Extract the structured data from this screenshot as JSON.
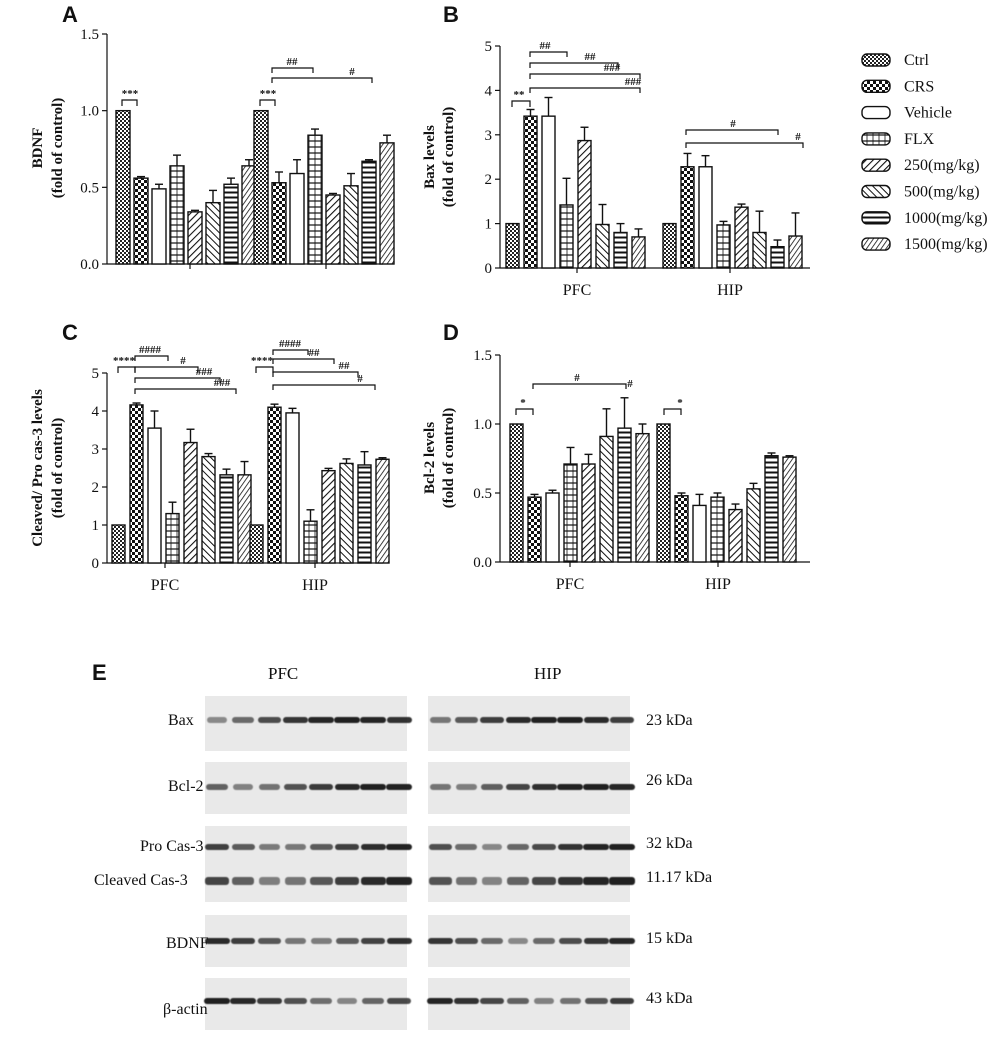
{
  "legend": {
    "items": [
      {
        "label": "Ctrl",
        "pattern": "p0"
      },
      {
        "label": "CRS",
        "pattern": "p1"
      },
      {
        "label": "Vehicle",
        "pattern": "p2"
      },
      {
        "label": "FLX",
        "pattern": "p3"
      },
      {
        "label": "250(mg/kg)",
        "pattern": "p4"
      },
      {
        "label": "500(mg/kg)",
        "pattern": "p5"
      },
      {
        "label": "1000(mg/kg)",
        "pattern": "p6"
      },
      {
        "label": "1500(mg/kg)",
        "pattern": "p7"
      }
    ]
  },
  "chart_data": [
    {
      "panel": "A",
      "type": "bar",
      "ylabel": "BDNF (fold of control)",
      "ylim": [
        0,
        1.5
      ],
      "yticks": [
        "0.0",
        "0.5",
        "1.0",
        "1.5"
      ],
      "groups": [
        "",
        ""
      ],
      "series_names": [
        "Ctrl",
        "CRS",
        "Vehicle",
        "FLX",
        "250(mg/kg)",
        "500(mg/kg)",
        "1000(mg/kg)",
        "1500(mg/kg)"
      ],
      "values": [
        [
          1.0,
          0.56,
          0.49,
          0.64,
          0.34,
          0.4,
          0.52,
          0.64
        ],
        [
          1.0,
          0.53,
          0.59,
          0.84,
          0.45,
          0.51,
          0.67,
          0.79
        ]
      ],
      "errors": [
        [
          0,
          0.01,
          0.03,
          0.07,
          0.01,
          0.08,
          0.04,
          0.04
        ],
        [
          0,
          0.07,
          0.09,
          0.04,
          0.01,
          0.08,
          0.01,
          0.05
        ]
      ],
      "annotations": [
        "***",
        "##",
        "#",
        "***"
      ]
    },
    {
      "panel": "B",
      "type": "bar",
      "ylabel": "Bax levels (fold of control)",
      "ylim": [
        0,
        5
      ],
      "yticks": [
        "0",
        "1",
        "2",
        "3",
        "4",
        "5"
      ],
      "groups": [
        "PFC",
        "HIP"
      ],
      "series_names": [
        "Ctrl",
        "CRS",
        "Vehicle",
        "FLX",
        "250(mg/kg)",
        "500(mg/kg)",
        "1000(mg/kg)",
        "1500(mg/kg)"
      ],
      "values": [
        [
          1.0,
          3.42,
          3.42,
          1.42,
          2.87,
          0.98,
          0.8,
          0.7
        ],
        [
          1.0,
          2.28,
          2.28,
          0.97,
          1.37,
          0.8,
          0.48,
          0.72
        ]
      ],
      "errors": [
        [
          0,
          0.15,
          0.42,
          0.6,
          0.3,
          0.45,
          0.2,
          0.18
        ],
        [
          0,
          0.3,
          0.25,
          0.08,
          0.07,
          0.48,
          0.15,
          0.52
        ]
      ],
      "annotations": [
        "**",
        "##",
        "##",
        "###",
        "###",
        "#",
        "#"
      ]
    },
    {
      "panel": "C",
      "type": "bar",
      "ylabel": "Cleaved/ Pro cas-3 levels (fold of control)",
      "ylim": [
        0,
        5
      ],
      "yticks": [
        "0",
        "1",
        "2",
        "3",
        "4",
        "5"
      ],
      "groups": [
        "PFC",
        "HIP"
      ],
      "series_names": [
        "Ctrl",
        "CRS",
        "Vehicle",
        "FLX",
        "250(mg/kg)",
        "500(mg/kg)",
        "1000(mg/kg)",
        "1500(mg/kg)"
      ],
      "values": [
        [
          1.0,
          4.16,
          3.55,
          1.3,
          3.17,
          2.8,
          2.32,
          2.32
        ],
        [
          1.0,
          4.1,
          3.95,
          1.1,
          2.43,
          2.62,
          2.58,
          2.73
        ]
      ],
      "errors": [
        [
          0,
          0.05,
          0.45,
          0.3,
          0.35,
          0.08,
          0.15,
          0.35
        ],
        [
          0,
          0.08,
          0.12,
          0.3,
          0.06,
          0.12,
          0.35,
          0.04
        ]
      ],
      "annotations": [
        "****",
        "####",
        "#",
        "###",
        "###",
        "****",
        "####",
        "##",
        "##",
        "#"
      ]
    },
    {
      "panel": "D",
      "type": "bar",
      "ylabel": "Bcl-2 levels (fold of control)",
      "ylim": [
        0,
        1.5
      ],
      "yticks": [
        "0.0",
        "0.5",
        "1.0",
        "1.5"
      ],
      "groups": [
        "PFC",
        "HIP"
      ],
      "series_names": [
        "Ctrl",
        "CRS",
        "Vehicle",
        "FLX",
        "250(mg/kg)",
        "500(mg/kg)",
        "1000(mg/kg)",
        "1500(mg/kg)"
      ],
      "values": [
        [
          1.0,
          0.47,
          0.5,
          0.71,
          0.71,
          0.91,
          0.97,
          0.93
        ],
        [
          1.0,
          0.48,
          0.41,
          0.47,
          0.38,
          0.53,
          0.77,
          0.76
        ]
      ],
      "errors": [
        [
          0,
          0.02,
          0.02,
          0.12,
          0.07,
          0.2,
          0.22,
          0.07
        ],
        [
          0,
          0.02,
          0.08,
          0.03,
          0.04,
          0.04,
          0.02,
          0.01
        ]
      ],
      "annotations": [
        "*",
        "#",
        "#",
        "*"
      ]
    }
  ],
  "blot": {
    "panel": "E",
    "columns": [
      "PFC",
      "HIP"
    ],
    "rows": [
      {
        "label": "Bax",
        "kda": "23 kDa"
      },
      {
        "label": "Bcl-2",
        "kda": "26 kDa"
      },
      {
        "label": "Pro Cas-3",
        "kda": "32 kDa"
      },
      {
        "label": "Cleaved Cas-3",
        "kda": "11.17 kDa"
      },
      {
        "label": "BDNF",
        "kda": "15 kDa"
      },
      {
        "label": "β-actin",
        "kda": "43 kDa"
      }
    ]
  }
}
